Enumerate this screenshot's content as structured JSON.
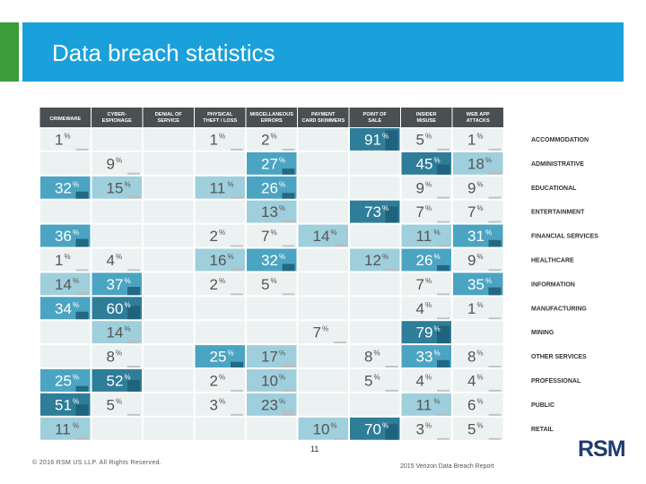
{
  "header": {
    "title": "Data breach statistics"
  },
  "footer": {
    "page_number": "11",
    "copyright": "© 2016 RSM US LLP. All Rights Reserved.",
    "source": "2015 Verizon Data Breach Report",
    "logo_text": "RSM"
  },
  "colors": {
    "accent_green": "#3a9d3a",
    "header_blue": "#1aa0db",
    "high": "#2e7d99",
    "mid": "#4ba4c2",
    "low": "#9fcfdc",
    "cell_bg": "#ecf1f2",
    "bar_gray": "#b9bdbe",
    "logo_navy": "#1f3c6e"
  },
  "chart_data": {
    "type": "heatmap",
    "title": "",
    "columns": [
      [
        "CRIMEWARE"
      ],
      [
        "CYBER-",
        "ESPIONAGE"
      ],
      [
        "DENIAL OF",
        "SERVICE"
      ],
      [
        "PHYSICAL",
        "THEFT / LOSS"
      ],
      [
        "MISCELLANEOUS",
        "ERRORS"
      ],
      [
        "PAYMENT",
        "CARD SKIMMERS"
      ],
      [
        "POINT OF",
        "SALE"
      ],
      [
        "INSIDER",
        "MISUSE"
      ],
      [
        "WEB APP",
        "ATTACKS"
      ]
    ],
    "rows": [
      "ACCOMMODATION",
      "ADMINISTRATIVE",
      "EDUCATIONAL",
      "ENTERTAINMENT",
      "FINANCIAL SERVICES",
      "HEALTHCARE",
      "INFORMATION",
      "MANUFACTURING",
      "MINING",
      "OTHER SERVICES",
      "PROFESSIONAL",
      "PUBLIC",
      "RETAIL"
    ],
    "values": [
      [
        1,
        null,
        null,
        1,
        2,
        null,
        91,
        5,
        1
      ],
      [
        null,
        9,
        null,
        null,
        27,
        null,
        null,
        45,
        18
      ],
      [
        32,
        15,
        null,
        11,
        26,
        null,
        null,
        9,
        9
      ],
      [
        null,
        null,
        null,
        null,
        13,
        null,
        73,
        7,
        7
      ],
      [
        36,
        null,
        null,
        2,
        7,
        14,
        null,
        11,
        31
      ],
      [
        1,
        4,
        null,
        16,
        32,
        null,
        12,
        26,
        9
      ],
      [
        14,
        37,
        null,
        2,
        5,
        null,
        null,
        7,
        35
      ],
      [
        34,
        60,
        null,
        null,
        null,
        null,
        null,
        4,
        1
      ],
      [
        null,
        14,
        null,
        null,
        null,
        7,
        null,
        79,
        null
      ],
      [
        null,
        8,
        null,
        25,
        17,
        null,
        8,
        33,
        8
      ],
      [
        25,
        52,
        null,
        2,
        10,
        null,
        5,
        4,
        4
      ],
      [
        51,
        5,
        null,
        3,
        23,
        null,
        null,
        11,
        6
      ],
      [
        11,
        null,
        null,
        null,
        null,
        10,
        70,
        3,
        5
      ]
    ],
    "unit": "%"
  }
}
